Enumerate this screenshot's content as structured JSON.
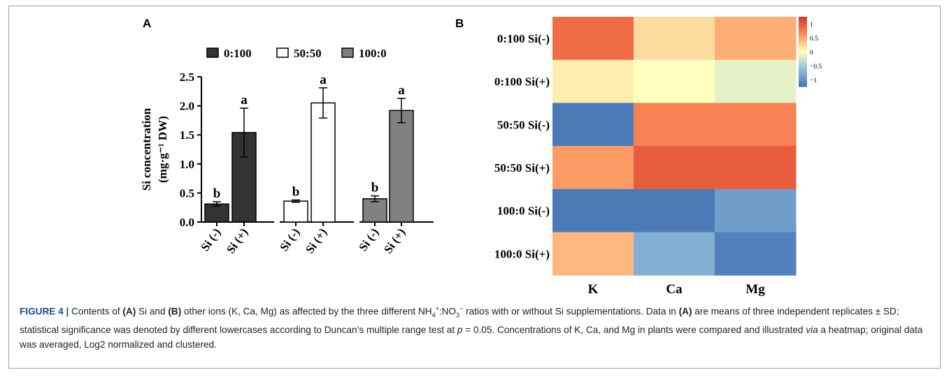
{
  "panels": {
    "a": "A",
    "b": "B"
  },
  "chart_data": [
    {
      "type": "bar",
      "legend": [
        "0:100",
        "50:50",
        "100:0"
      ],
      "legend_placement": "top",
      "groups": [
        "0:100",
        "50:50",
        "100:0"
      ],
      "categories": [
        "Si (-)",
        "Si (+)"
      ],
      "group_colors": [
        "#333333",
        "#ffffff",
        "#808080"
      ],
      "values": [
        [
          0.31,
          1.54
        ],
        [
          0.36,
          2.05
        ],
        [
          0.4,
          1.92
        ]
      ],
      "errors": [
        [
          0.04,
          0.42
        ],
        [
          0.02,
          0.26
        ],
        [
          0.05,
          0.21
        ]
      ],
      "letters": [
        [
          "b",
          "a"
        ],
        [
          "b",
          "a"
        ],
        [
          "b",
          "a"
        ]
      ],
      "ylabel_line1": "Si concentration",
      "ylabel_line2": "(mg·g⁻¹ DW)",
      "ylim": [
        0,
        2.5
      ],
      "yticks": [
        "0.0",
        "0.5",
        "1.0",
        "1.5",
        "2.0",
        "2.5"
      ],
      "grid": false
    },
    {
      "type": "heatmap",
      "rows": [
        "0:100 Si(-)",
        "0:100 Si(+)",
        "50:50 Si(-)",
        "50:50 Si(+)",
        "100:0 Si(-)",
        "100:0 Si(+)"
      ],
      "cols": [
        "K",
        "Ca",
        "Mg"
      ],
      "values": [
        [
          0.85,
          0.2,
          0.45
        ],
        [
          0.1,
          0.0,
          -0.15
        ],
        [
          -1.2,
          0.7,
          0.7
        ],
        [
          0.55,
          0.95,
          0.95
        ],
        [
          -1.2,
          -1.2,
          -0.9
        ],
        [
          0.4,
          -0.75,
          -1.15
        ]
      ],
      "scale_ticks": [
        "1",
        "0.5",
        "0",
        "−0.5",
        "−1"
      ],
      "scale_values": [
        1,
        0.5,
        0,
        -0.5,
        -1
      ],
      "scale_range": [
        -1.25,
        1.25
      ],
      "scale_colors": [
        "#4575b4",
        "#91bfdb",
        "#ffffbf",
        "#fc8d59",
        "#d73027"
      ],
      "legend_placement": "right"
    }
  ],
  "caption": {
    "lead": "FIGURE 4 |",
    "t1": " Contents of ",
    "a1": "(A)",
    "t2": " Si and ",
    "b1": "(B)",
    "t3": " other ions (K, Ca, Mg) as affected by the three different NH",
    "nh_sub": "4",
    "nh_sup": "+",
    "t4": ":NO",
    "no_sub": "3",
    "no_sup": "−",
    "t5": " ratios with or without Si supplementations. Data in ",
    "a2": "(A)",
    "t6": " are means of three independent replicates ± SD; statistical significance was denoted by different lowercases according to Duncan’s multiple range test at ",
    "p": "p",
    "t7": " = 0.05. Concentrations of K, Ca, and Mg in plants were compared and illustrated ",
    "via": "via",
    "t8": " a heatmap; original data was averaged, Log2 normalized and clustered."
  }
}
